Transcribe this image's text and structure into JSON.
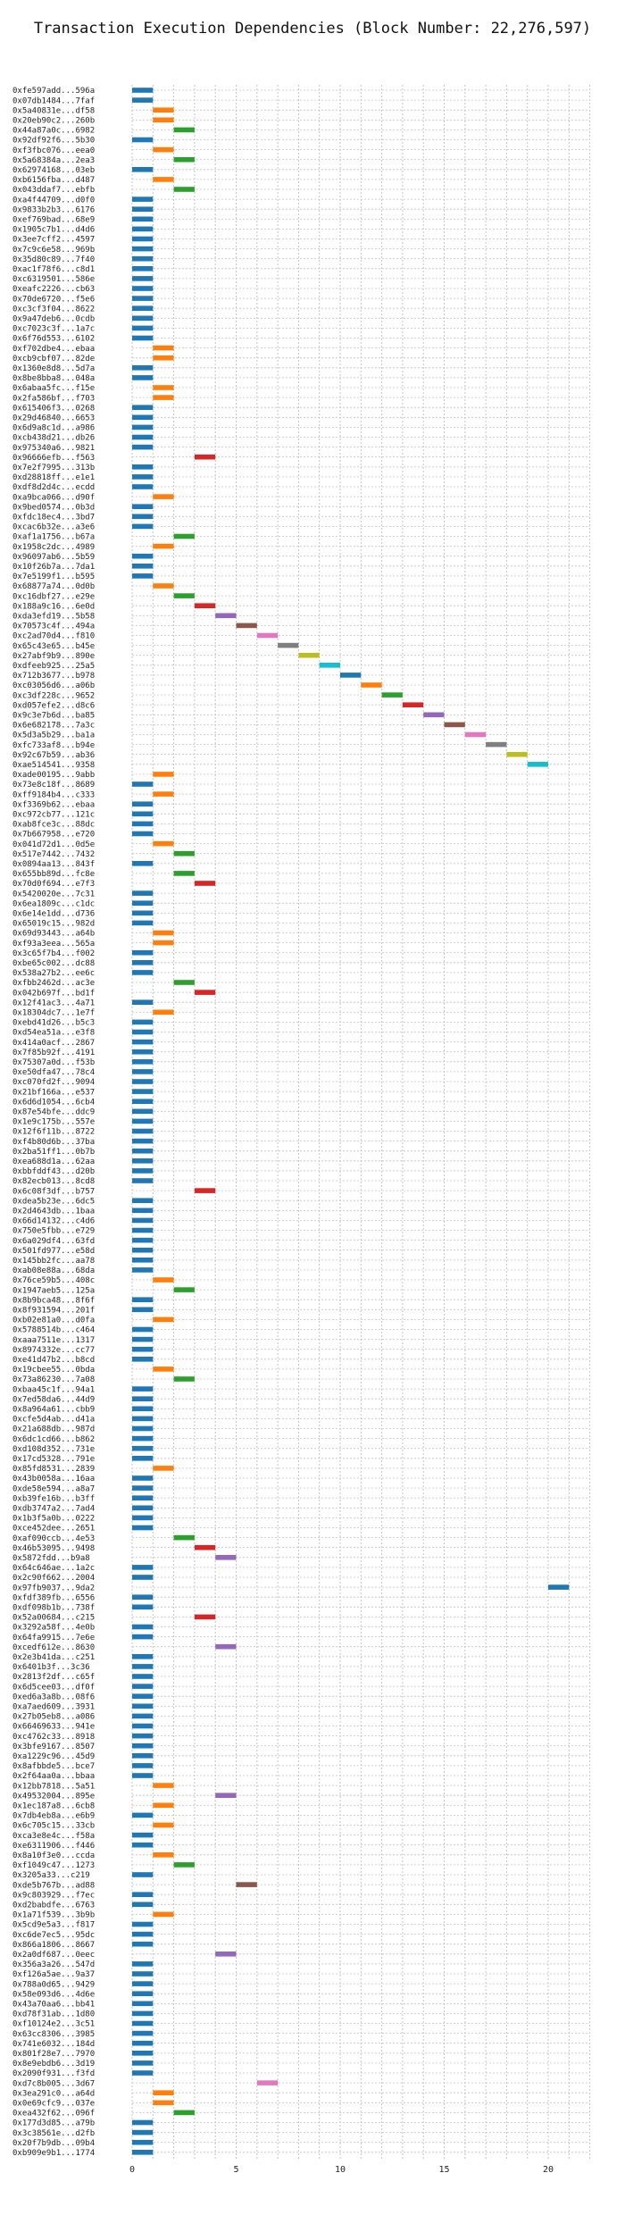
{
  "chart_data": {
    "type": "bar",
    "orientation": "horizontal-gantt",
    "title": "Transaction Execution Dependencies (Block Number: 22,276,597)",
    "xlabel": "",
    "ylabel": "",
    "xlim": [
      0,
      22
    ],
    "xticks": [
      0,
      5,
      10,
      15,
      20
    ],
    "grid": true,
    "bar_length": 1,
    "tx_labels": [
      "0xfe597add...596a",
      "0x07db1484...7faf",
      "0x5a40831e...df58",
      "0x20eb90c2...260b",
      "0x44a87a0c...6982",
      "0x92df92f6...5b30",
      "0xf3fbc076...eea0",
      "0x5a68384a...2ea3",
      "0x62974168...03eb",
      "0xb6156fba...d487",
      "0x043ddaf7...ebfb",
      "0xa4f44709...d0f0",
      "0x9833b2b3...6176",
      "0xef769bad...68e9",
      "0x1905c7b1...d4d6",
      "0x3ee7cff2...4597",
      "0x7c9c6e58...969b",
      "0x35d80c89...7f40",
      "0xac1f78f6...c8d1",
      "0xc6319501...586e",
      "0xeafc2226...cb63",
      "0x70de6720...f5e6",
      "0xc3cf3f04...8622",
      "0x9a47deb6...0cdb",
      "0xc7023c3f...1a7c",
      "0x6f76d553...6102",
      "0xf702dbe4...ebaa",
      "0xcb9cbf07...82de",
      "0x1360e8d8...5d7a",
      "0x8be8bba8...048a",
      "0x6abaa5fc...f15e",
      "0x2fa586bf...f703",
      "0x615406f3...0268",
      "0x29d46840...6653",
      "0x6d9a8c1d...a986",
      "0xcb438d21...db26",
      "0x975340a6...9821",
      "0x96666efb...f563",
      "0x7e2f7995...313b",
      "0xd28818ff...e1e1",
      "0xdf8d2d4c...ecdd",
      "0xa9bca066...d90f",
      "0x9bed0574...0b3d",
      "0xfdc18ec4...3bd7",
      "0xcac6b32e...a3e6",
      "0xaf1a1756...b67a",
      "0x1958c2dc...4989",
      "0x96097ab6...5b59",
      "0x10f26b7a...7da1",
      "0x7e5199f1...b595",
      "0x68877a74...0d0b",
      "0xc16dbf27...e29e",
      "0x188a9c16...6e0d",
      "0xda3efd19...5b58",
      "0x70573c4f...494a",
      "0xc2ad70d4...f810",
      "0x65c43e65...b45e",
      "0x27abf9b9...890e",
      "0xdfeeb925...25a5",
      "0x712b3677...b978",
      "0xc03056d6...a06b",
      "0xc3df228c...9652",
      "0xd057efe2...d8c6",
      "0x9c3e7b6d...ba85",
      "0x6e682178...7a3c",
      "0x5d3a5b29...ba1a",
      "0xfc733af8...b94e",
      "0x92c67b59...ab36",
      "0xae514541...9358",
      "0xade00195...9abb",
      "0x73e8c18f...8689",
      "0xff9184b4...c333",
      "0xf3369b62...ebaa",
      "0xc972cb77...121c",
      "0xab8fce3c...88dc",
      "0x7b667958...e720",
      "0x041d72d1...0d5e",
      "0x517e7442...7432",
      "0x0894aa13...843f",
      "0x655bb89d...fc8e",
      "0x70d0f694...e7f3",
      "0x5420020e...7c31",
      "0x6ea1809c...c1dc",
      "0x6e14e1dd...d736",
      "0x65019c15...982d",
      "0x69d93443...a64b",
      "0xf93a3eea...565a",
      "0x3c65f7b4...f002",
      "0xbe65c002...dc88",
      "0x538a27b2...ee6c",
      "0xfbb2462d...ac3e",
      "0x042b697f...bd1f",
      "0x12f41ac3...4a71",
      "0x18304dc7...1e7f",
      "0xebd41d26...b5c3",
      "0xd54ea51a...e3f8",
      "0x414a0acf...2867",
      "0x7f85b92f...4191",
      "0x75307a0d...f53b",
      "0xe50dfa47...78c4",
      "0xc070fd2f...9094",
      "0x21bf166a...e537",
      "0x6d6d1054...6cb4",
      "0x87e54bfe...ddc9",
      "0x1e9c175b...557e",
      "0x12f6f11b...8722",
      "0xf4b80d6b...37ba",
      "0x2ba51ff1...0b7b",
      "0xea688d1a...62aa",
      "0xbbfddf43...d20b",
      "0x82ecb013...8cd8",
      "0x6c08f3df...b757",
      "0xdea5b23e...6dc5",
      "0x2d4643db...1baa",
      "0x66d14132...c4d6",
      "0x750e5fbb...e729",
      "0x6a029df4...63fd",
      "0x501fd977...e58d",
      "0x145bb2fc...aa78",
      "0xab08e88a...68da",
      "0x76ce59b5...408c",
      "0x1947aeb5...125a",
      "0x8b9bca48...8f6f",
      "0x8f931594...201f",
      "0xb02e81a0...d0fa",
      "0x5788514b...c464",
      "0xaaa7511e...1317",
      "0x8974332e...cc77",
      "0xe41d47b2...b8cd",
      "0x19cbee55...0bda",
      "0x73a86230...7a08",
      "0xbaa45c1f...94a1",
      "0x7ed58da6...44d9",
      "0x8a964a61...cbb9",
      "0xcfe5d4ab...d41a",
      "0x21a688db...987d",
      "0x6dc1cd66...b862",
      "0xd108d352...731e",
      "0x17cd5328...791e",
      "0x85fd8531...2839",
      "0x43b0058a...16aa",
      "0xde58e594...a8a7",
      "0xb39fe16b...b3ff",
      "0xdb3747a2...7ad4",
      "0x1b3f5a0b...0222",
      "0xce452dee...2651",
      "0xaf090ccb...4e53",
      "0x46b53095...9498",
      "0x5872fdd...b9a8",
      "0x64c646ae...1a2c",
      "0x2c90f662...2004",
      "0x97fb9037...9da2",
      "0xfdf389fb...6556",
      "0xdf098b1b...738f",
      "0x52a00684...c215",
      "0x3292a58f...4e0b",
      "0x64fa9915...7e6e",
      "0xcedf612e...8630",
      "0x2e3b41da...c251",
      "0x6401b3f...3c36",
      "0x2813f2df...c65f",
      "0x6d5cee03...df0f",
      "0xed6a3a8b...08f6",
      "0xa7aed609...3931",
      "0x27b05eb8...a086",
      "0x66469633...941e",
      "0xc4762c33...8918",
      "0x3bfe9167...8507",
      "0xa1229c96...45d9",
      "0x8afbbde5...bce7",
      "0x2f64aa0a...bbaa",
      "0x12bb7818...5a51",
      "0x49532004...895e",
      "0x1ec187a8...6cb8",
      "0x7db4eb8a...e6b9",
      "0x6c705c15...33cb",
      "0xca3e8e4c...f58a",
      "0xe6311906...f446",
      "0x8a10f3e0...ccda",
      "0xf1049c47...1273",
      "0x3205a33...c219",
      "0xde5b767b...ad88",
      "0x9c803929...f7ec",
      "0xd2babdfe...6763",
      "0x1a71f539...3b9b",
      "0x5cd9e5a3...f817",
      "0xc6de7ec5...95dc",
      "0x866a1806...8667",
      "0x2a0df687...0eec",
      "0x356a3a26...547d",
      "0xf126a5ae...9a37",
      "0x788a0d65...9429",
      "0x58e093d6...4d6e",
      "0x43a70aa6...bb41",
      "0xd78f31ab...1d80",
      "0xf10124e2...3c51",
      "0x63cc8306...3985",
      "0x741e6032...184d",
      "0x801f28e7...7970",
      "0x8e9ebdb6...3d19",
      "0x2090f931...f3fd",
      "0xd7c8b005...3d67",
      "0x3ea291c0...a64d",
      "0x0e69cfc9...037e",
      "0xea432f62...096f",
      "0x177d3d85...a79b",
      "0x3c38561e...d2fb",
      "0x20f7b9db...09b4",
      "0xb909e9b1...1774"
    ],
    "start": [
      0,
      0,
      1,
      1,
      2,
      0,
      1,
      2,
      0,
      1,
      2,
      0,
      0,
      0,
      0,
      0,
      0,
      0,
      0,
      0,
      0,
      0,
      0,
      0,
      0,
      0,
      1,
      1,
      0,
      0,
      1,
      1,
      0,
      0,
      0,
      0,
      0,
      3,
      0,
      0,
      0,
      1,
      0,
      0,
      0,
      2,
      1,
      0,
      0,
      0,
      1,
      2,
      3,
      4,
      5,
      6,
      7,
      8,
      9,
      10,
      11,
      12,
      13,
      14,
      15,
      16,
      17,
      18,
      19,
      1,
      0,
      1,
      0,
      0,
      0,
      0,
      1,
      2,
      0,
      2,
      3,
      0,
      0,
      0,
      0,
      1,
      1,
      0,
      0,
      0,
      2,
      3,
      0,
      1,
      0,
      0,
      0,
      0,
      0,
      0,
      0,
      0,
      0,
      0,
      0,
      0,
      0,
      0,
      0,
      0,
      0,
      3,
      0,
      0,
      0,
      0,
      0,
      0,
      0,
      0,
      1,
      2,
      0,
      0,
      1,
      0,
      0,
      0,
      0,
      1,
      2,
      0,
      0,
      0,
      0,
      0,
      0,
      0,
      0,
      1,
      0,
      0,
      0,
      0,
      0,
      0,
      2,
      3,
      4,
      0,
      0,
      20,
      0,
      0,
      3,
      0,
      0,
      4,
      0,
      0,
      0,
      0,
      0,
      0,
      0,
      0,
      0,
      0,
      0,
      0,
      0,
      1,
      4,
      1,
      0,
      1,
      0,
      0,
      1,
      2,
      0,
      5,
      0,
      0,
      1,
      0,
      0,
      0,
      4,
      0,
      0,
      0,
      0,
      0,
      0,
      0,
      0,
      0,
      0,
      0,
      0,
      6,
      1,
      1,
      2,
      0,
      0,
      0,
      0
    ]
  },
  "colors": {
    "palette": [
      "#1f77b4",
      "#ff7f0e",
      "#2ca02c",
      "#d62728",
      "#9467bd",
      "#8c564b",
      "#e377c2",
      "#7f7f7f",
      "#bcbd22",
      "#17becf"
    ],
    "grid": "#c4c4c4",
    "text": "#222222"
  }
}
